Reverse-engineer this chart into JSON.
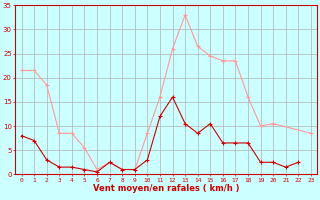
{
  "x": [
    0,
    1,
    2,
    3,
    4,
    5,
    6,
    7,
    8,
    9,
    10,
    11,
    12,
    13,
    14,
    15,
    16,
    17,
    18,
    19,
    20,
    21,
    22,
    23
  ],
  "vent_moyen": [
    8,
    7,
    3,
    1.5,
    1.5,
    1,
    0.5,
    2.5,
    1,
    1,
    3,
    12,
    16,
    10.5,
    8.5,
    10.5,
    6.5,
    6.5,
    6.5,
    2.5,
    2.5,
    1.5,
    2.5,
    null
  ],
  "rafales": [
    21.5,
    21.5,
    18.5,
    8.5,
    8.5,
    5.5,
    1,
    2.5,
    1,
    1,
    8.5,
    16,
    26,
    33,
    26.5,
    24.5,
    23.5,
    23.5,
    16,
    10,
    10.5,
    null,
    null,
    8.5
  ],
  "color_moyen": "#cc0000",
  "color_rafales": "#ff9999",
  "bg_color": "#ccffff",
  "grid_color": "#b0b0b0",
  "xlabel": "Vent moyen/en rafales ( km/h )",
  "ylim": [
    0,
    35
  ],
  "xlim": [
    -0.5,
    23.5
  ],
  "yticks": [
    0,
    5,
    10,
    15,
    20,
    25,
    30,
    35
  ],
  "xticks": [
    0,
    1,
    2,
    3,
    4,
    5,
    6,
    7,
    8,
    9,
    10,
    11,
    12,
    13,
    14,
    15,
    16,
    17,
    18,
    19,
    20,
    21,
    22,
    23
  ]
}
